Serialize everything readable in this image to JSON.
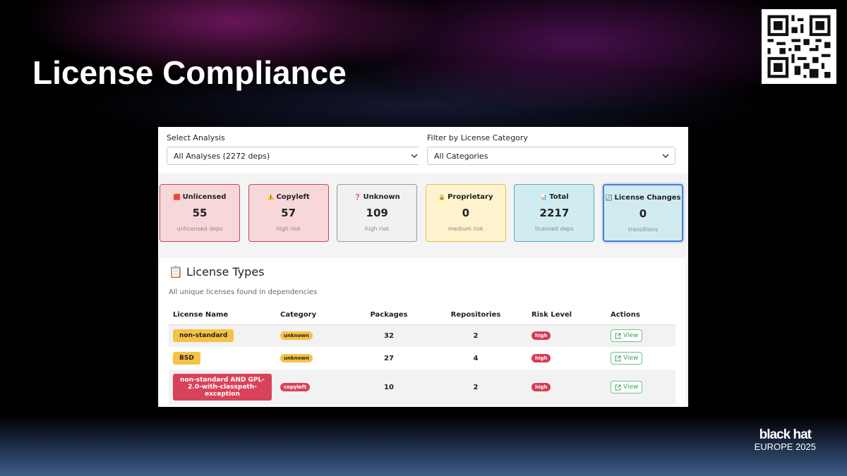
{
  "slide": {
    "title": "License Compliance",
    "brand": {
      "name": "black hat",
      "event": "EUROPE 2025"
    }
  },
  "filters": [
    {
      "label": "Select Analysis",
      "value": "All Analyses (2272 deps)"
    },
    {
      "label": "Filter by License Category",
      "value": "All Categories"
    }
  ],
  "cards": [
    {
      "icon": "🟥",
      "title": "Unlicensed",
      "value": 55,
      "caption": "unlicensed deps"
    },
    {
      "icon": "⚠️",
      "title": "Copyleft",
      "value": 57,
      "caption": "high risk"
    },
    {
      "icon": "❓",
      "title": "Unknown",
      "value": 109,
      "caption": "high risk"
    },
    {
      "icon": "🔒",
      "title": "Proprietary",
      "value": 0,
      "caption": "medium risk"
    },
    {
      "icon": "📊",
      "title": "Total",
      "value": 2217,
      "caption": "licensed deps"
    },
    {
      "icon": "🔄",
      "title": "License Changes",
      "value": 0,
      "caption": "transitions"
    }
  ],
  "section": {
    "title": "📋 License Types",
    "subtitle": "All unique licenses found in dependencies"
  },
  "table": {
    "headers": [
      "License Name",
      "Category",
      "Packages",
      "Repositories",
      "Risk Level",
      "Actions"
    ],
    "rows": [
      [
        "non-standard",
        "unknown",
        32,
        2,
        "high",
        "View"
      ],
      [
        "BSD",
        "unknown",
        27,
        4,
        "high",
        "View"
      ],
      [
        "non-standard AND GPL-2.0-with-classpath-exception",
        "copyleft",
        10,
        2,
        "high",
        "View"
      ]
    ]
  }
}
